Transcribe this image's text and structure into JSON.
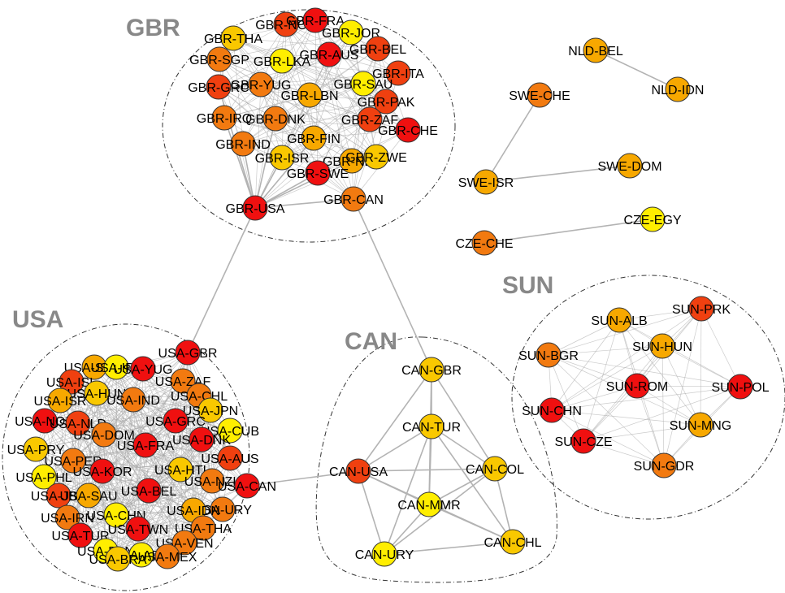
{
  "colors": {
    "red": "#f01010",
    "red_orange": "#f04010",
    "orange": "#f27a10",
    "light_orange": "#f7a800",
    "yellow_orange": "#f9c800",
    "yellow": "#ffee00"
  },
  "groups": [
    {
      "id": "GBR",
      "title": "GBR"
    },
    {
      "id": "USA",
      "title": "USA"
    },
    {
      "id": "CAN",
      "title": "CAN"
    },
    {
      "id": "SUN",
      "title": "SUN"
    }
  ],
  "nodes": [
    {
      "id": "GBR-NOR",
      "label": "GBR-NOR",
      "color": "red_orange"
    },
    {
      "id": "GBR-FRA",
      "label": "GBR-FRA",
      "color": "red"
    },
    {
      "id": "GBR-JOR",
      "label": "GBR-JOR",
      "color": "yellow"
    },
    {
      "id": "GBR-THA",
      "label": "GBR-THA",
      "color": "yellow_orange"
    },
    {
      "id": "GBR-SGP",
      "label": "GBR-SGP",
      "color": "orange"
    },
    {
      "id": "GBR-LKA",
      "label": "GBR-LKA",
      "color": "yellow"
    },
    {
      "id": "GBR-AUS",
      "label": "GBR-AUS",
      "color": "red"
    },
    {
      "id": "GBR-BEL",
      "label": "GBR-BEL",
      "color": "red_orange"
    },
    {
      "id": "GBR-ITA",
      "label": "GBR-ITA",
      "color": "red_orange"
    },
    {
      "id": "GBR-GRC",
      "label": "GBR-GRC",
      "color": "red_orange"
    },
    {
      "id": "GBR-YUG",
      "label": "GBR-YUG",
      "color": "orange"
    },
    {
      "id": "GBR-SAU",
      "label": "GBR-SAU",
      "color": "yellow"
    },
    {
      "id": "GBR-LBN",
      "label": "GBR-LBN",
      "color": "light_orange"
    },
    {
      "id": "GBR-PAK",
      "label": "GBR-PAK",
      "color": "red_orange"
    },
    {
      "id": "GBR-IRQ",
      "label": "GBR-IRQ",
      "color": "orange"
    },
    {
      "id": "GBR-DNK",
      "label": "GBR-DNK",
      "color": "orange"
    },
    {
      "id": "GBR-ZAF",
      "label": "GBR-ZAF",
      "color": "red_orange"
    },
    {
      "id": "GBR-CHE",
      "label": "GBR-CHE",
      "color": "red"
    },
    {
      "id": "GBR-FIN",
      "label": "GBR-FIN",
      "color": "light_orange"
    },
    {
      "id": "GBR-IND",
      "label": "GBR-IND",
      "color": "orange"
    },
    {
      "id": "GBR-ISR",
      "label": "GBR-ISR",
      "color": "yellow_orange"
    },
    {
      "id": "GBR-NLD",
      "label": "GBR-NLD",
      "color": "light_orange"
    },
    {
      "id": "GBR-ZWE",
      "label": "GBR-ZWE",
      "color": "yellow_orange"
    },
    {
      "id": "GBR-SWE",
      "label": "GBR-SWE",
      "color": "red"
    },
    {
      "id": "GBR-USA",
      "label": "GBR-USA",
      "color": "red"
    },
    {
      "id": "GBR-CAN",
      "label": "GBR-CAN",
      "color": "orange"
    },
    {
      "id": "NLD-BEL",
      "label": "NLD-BEL",
      "color": "light_orange"
    },
    {
      "id": "NLD-IDN",
      "label": "NLD-IDN",
      "color": "light_orange"
    },
    {
      "id": "SWE-CHE",
      "label": "SWE-CHE",
      "color": "orange"
    },
    {
      "id": "SWE-ISR",
      "label": "SWE-ISR",
      "color": "light_orange"
    },
    {
      "id": "SWE-DOM",
      "label": "SWE-DOM",
      "color": "light_orange"
    },
    {
      "id": "CZE-EGY",
      "label": "CZE-EGY",
      "color": "yellow"
    },
    {
      "id": "CZE-CHE",
      "label": "CZE-CHE",
      "color": "orange"
    },
    {
      "id": "SUN-ALB",
      "label": "SUN-ALB",
      "color": "light_orange"
    },
    {
      "id": "SUN-PRK",
      "label": "SUN-PRK",
      "color": "red_orange"
    },
    {
      "id": "SUN-BGR",
      "label": "SUN-BGR",
      "color": "orange"
    },
    {
      "id": "SUN-HUN",
      "label": "SUN-HUN",
      "color": "light_orange"
    },
    {
      "id": "SUN-ROM",
      "label": "SUN-ROM",
      "color": "red"
    },
    {
      "id": "SUN-POL",
      "label": "SUN-POL",
      "color": "red"
    },
    {
      "id": "SUN-CHN",
      "label": "SUN-CHN",
      "color": "red"
    },
    {
      "id": "SUN-MNG",
      "label": "SUN-MNG",
      "color": "light_orange"
    },
    {
      "id": "SUN-CZE",
      "label": "SUN-CZE",
      "color": "red"
    },
    {
      "id": "SUN-GDR",
      "label": "SUN-GDR",
      "color": "orange"
    },
    {
      "id": "CAN-GBR",
      "label": "CAN-GBR",
      "color": "yellow_orange"
    },
    {
      "id": "CAN-TUR",
      "label": "CAN-TUR",
      "color": "yellow_orange"
    },
    {
      "id": "CAN-USA",
      "label": "CAN-USA",
      "color": "red_orange"
    },
    {
      "id": "CAN-COL",
      "label": "CAN-COL",
      "color": "yellow_orange"
    },
    {
      "id": "CAN-MMR",
      "label": "CAN-MMR",
      "color": "yellow"
    },
    {
      "id": "CAN-CHL",
      "label": "CAN-CHL",
      "color": "yellow_orange"
    },
    {
      "id": "CAN-URY",
      "label": "CAN-URY",
      "color": "yellow"
    },
    {
      "id": "USA-GBR",
      "label": "USA-GBR",
      "color": "red"
    },
    {
      "id": "USA-SWE",
      "label": "USA-SWE",
      "color": "light_orange"
    },
    {
      "id": "USA-IRL",
      "label": "USA-IRL",
      "color": "yellow"
    },
    {
      "id": "USA-YUG",
      "label": "USA-YUG",
      "color": "red"
    },
    {
      "id": "USA-ISL",
      "label": "USA-ISL",
      "color": "red_orange"
    },
    {
      "id": "USA-ZAF",
      "label": "USA-ZAF",
      "color": "orange"
    },
    {
      "id": "USA-HUN",
      "label": "USA-HUN",
      "color": "yellow_orange"
    },
    {
      "id": "USA-ISR",
      "label": "USA-ISR",
      "color": "light_orange"
    },
    {
      "id": "USA-IND",
      "label": "USA-IND",
      "color": "orange"
    },
    {
      "id": "USA-CHL",
      "label": "USA-CHL",
      "color": "orange"
    },
    {
      "id": "USA-JPN",
      "label": "USA-JPN",
      "color": "yellow_orange"
    },
    {
      "id": "USA-NOR",
      "label": "USA-NOR",
      "color": "red"
    },
    {
      "id": "USA-NLD",
      "label": "USA-NLD",
      "color": "red_orange"
    },
    {
      "id": "USA-GRC",
      "label": "USA-GRC",
      "color": "red"
    },
    {
      "id": "USA-CUB",
      "label": "USA-CUB",
      "color": "yellow"
    },
    {
      "id": "USA-DOM",
      "label": "USA-DOM",
      "color": "orange"
    },
    {
      "id": "USA-DNK",
      "label": "USA-DNK",
      "color": "red"
    },
    {
      "id": "USA-PRY",
      "label": "USA-PRY",
      "color": "yellow_orange"
    },
    {
      "id": "USA-FRA",
      "label": "USA-FRA",
      "color": "red"
    },
    {
      "id": "USA-AUS",
      "label": "USA-AUS",
      "color": "red_orange"
    },
    {
      "id": "USA-PER",
      "label": "USA-PER",
      "color": "orange"
    },
    {
      "id": "USA-PHL",
      "label": "USA-PHL",
      "color": "yellow"
    },
    {
      "id": "USA-HTI",
      "label": "USA-HTI",
      "color": "yellow_orange"
    },
    {
      "id": "USA-KOR",
      "label": "USA-KOR",
      "color": "red"
    },
    {
      "id": "USA-NZL",
      "label": "USA-NZL",
      "color": "orange"
    },
    {
      "id": "USA-CAN",
      "label": "USA-CAN",
      "color": "red"
    },
    {
      "id": "USA-JBN",
      "label": "USA-JBN",
      "color": "red_orange"
    },
    {
      "id": "USA-SAU",
      "label": "USA-SAU",
      "color": "light_orange"
    },
    {
      "id": "USA-BEL",
      "label": "USA-BEL",
      "color": "red"
    },
    {
      "id": "USA-URY",
      "label": "USA-URY",
      "color": "orange"
    },
    {
      "id": "USA-IDN",
      "label": "USA-IDN",
      "color": "light_orange"
    },
    {
      "id": "USA-IRN",
      "label": "USA-IRN",
      "color": "orange"
    },
    {
      "id": "USA-CHN",
      "label": "USA-CHN",
      "color": "yellow"
    },
    {
      "id": "USA-THA",
      "label": "USA-THA",
      "color": "orange"
    },
    {
      "id": "USA-TUR",
      "label": "USA-TUR",
      "color": "red"
    },
    {
      "id": "USA-TWN",
      "label": "USA-TWN",
      "color": "red"
    },
    {
      "id": "USA-VEN",
      "label": "USA-VEN",
      "color": "orange"
    },
    {
      "id": "USA-PAN",
      "label": "USA-PAN",
      "color": "yellow"
    },
    {
      "id": "USA-ARG",
      "label": "USA-ARG",
      "color": "yellow"
    },
    {
      "id": "USA-MEX",
      "label": "USA-MEX",
      "color": "orange"
    },
    {
      "id": "USA-BRA",
      "label": "USA-BRA",
      "color": "yellow_orange"
    }
  ],
  "edges": [
    [
      "GBR-USA",
      "USA-GBR"
    ],
    [
      "GBR-CAN",
      "CAN-GBR"
    ],
    [
      "GBR-USA",
      "GBR-CAN"
    ],
    [
      "CAN-USA",
      "USA-CAN"
    ],
    [
      "NLD-BEL",
      "NLD-IDN"
    ],
    [
      "SWE-CHE",
      "SWE-ISR"
    ],
    [
      "SWE-ISR",
      "SWE-DOM"
    ],
    [
      "CZE-EGY",
      "CZE-CHE"
    ],
    [
      "CAN-GBR",
      "CAN-TUR"
    ],
    [
      "CAN-GBR",
      "CAN-USA"
    ],
    [
      "CAN-GBR",
      "CAN-COL"
    ],
    [
      "CAN-GBR",
      "CAN-MMR"
    ],
    [
      "CAN-TUR",
      "CAN-USA"
    ],
    [
      "CAN-TUR",
      "CAN-COL"
    ],
    [
      "CAN-TUR",
      "CAN-MMR"
    ],
    [
      "CAN-TUR",
      "CAN-URY"
    ],
    [
      "CAN-TUR",
      "CAN-CHL"
    ],
    [
      "CAN-USA",
      "CAN-MMR"
    ],
    [
      "CAN-USA",
      "CAN-URY"
    ],
    [
      "CAN-USA",
      "CAN-COL"
    ],
    [
      "CAN-USA",
      "CAN-CHL"
    ],
    [
      "CAN-COL",
      "CAN-MMR"
    ],
    [
      "CAN-COL",
      "CAN-CHL"
    ],
    [
      "CAN-COL",
      "CAN-URY"
    ],
    [
      "CAN-MMR",
      "CAN-URY"
    ],
    [
      "CAN-MMR",
      "CAN-CHL"
    ],
    [
      "CAN-URY",
      "CAN-CHL"
    ]
  ]
}
